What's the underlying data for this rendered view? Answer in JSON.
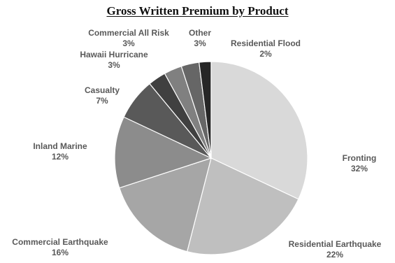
{
  "chart_data": {
    "type": "pie",
    "title": "Gross Written Premium by Product",
    "slices": [
      {
        "name": "Fronting",
        "value": 32,
        "label": "32%",
        "color": "#d9d9d9"
      },
      {
        "name": "Residential Earthquake",
        "value": 22,
        "label": "22%",
        "color": "#bfbfbf"
      },
      {
        "name": "Commercial Earthquake",
        "value": 16,
        "label": "16%",
        "color": "#a6a6a6"
      },
      {
        "name": "Inland Marine",
        "value": 12,
        "label": "12%",
        "color": "#8c8c8c"
      },
      {
        "name": "Casualty",
        "value": 7,
        "label": "7%",
        "color": "#595959"
      },
      {
        "name": "Hawaii Hurricane",
        "value": 3,
        "label": "3%",
        "color": "#404040"
      },
      {
        "name": "Commercial All Risk",
        "value": 3,
        "label": "3%",
        "color": "#808080"
      },
      {
        "name": "Other",
        "value": 3,
        "label": "3%",
        "color": "#666666"
      },
      {
        "name": "Residential Flood",
        "value": 2,
        "label": "2%",
        "color": "#262626"
      }
    ],
    "legend": "none"
  }
}
